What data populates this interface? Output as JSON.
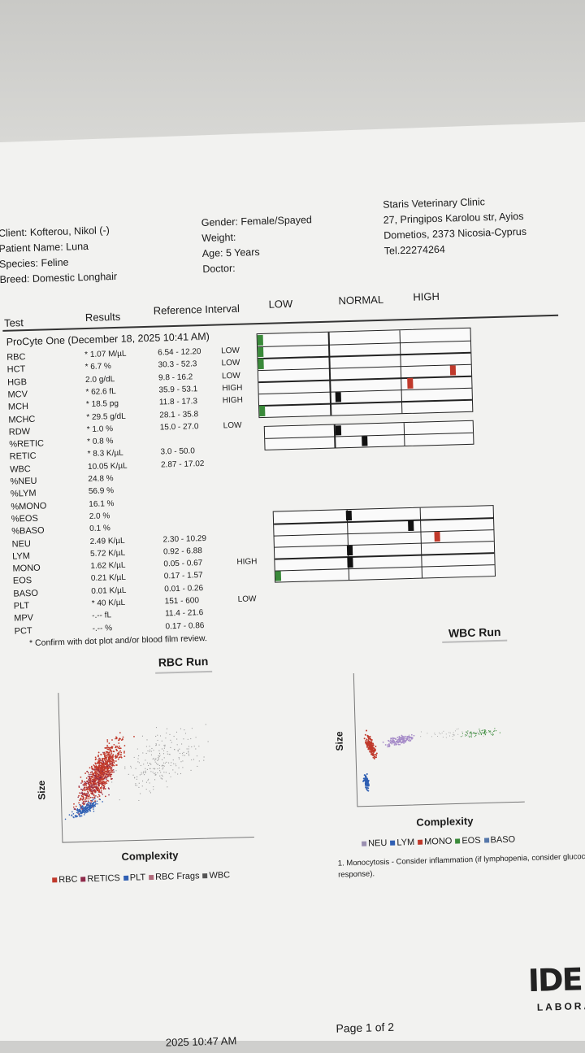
{
  "header": {
    "client": "Client: Kofterou, Nikol (-)",
    "patient": "Patient Name: Luna",
    "species": "Species: Feline",
    "breed": "Breed: Domestic Longhair",
    "gender": "Gender: Female/Spayed",
    "weight": "Weight:",
    "age": "Age: 5 Years",
    "doctor": "Doctor:",
    "clinic_name": "Staris Veterinary Clinic",
    "clinic_addr1": "27, Pringipos Karolou str, Ayios",
    "clinic_addr2": "Dometios, 2373 Nicosia-Cyprus",
    "clinic_tel": "Tel.22274264"
  },
  "table": {
    "col_test": "Test",
    "col_results": "Results",
    "col_ref": "Reference Interval",
    "col_low": "LOW",
    "col_normal": "NORMAL",
    "col_high": "HIGH",
    "run_title": "ProCyte One (December 18, 2025 10:41 AM)",
    "rows": [
      {
        "test": "RBC",
        "result": "* 1.07 M/µL",
        "ref": "6.54 - 12.20",
        "flag": "LOW"
      },
      {
        "test": "HCT",
        "result": "* 6.7 %",
        "ref": "30.3 - 52.3",
        "flag": "LOW"
      },
      {
        "test": "HGB",
        "result": "2.0 g/dL",
        "ref": "9.8 - 16.2",
        "flag": "LOW"
      },
      {
        "test": "MCV",
        "result": "* 62.6 fL",
        "ref": "35.9 - 53.1",
        "flag": "HIGH"
      },
      {
        "test": "MCH",
        "result": "* 18.5 pg",
        "ref": "11.8 - 17.3",
        "flag": "HIGH"
      },
      {
        "test": "MCHC",
        "result": "* 29.5 g/dL",
        "ref": "28.1 - 35.8",
        "flag": ""
      },
      {
        "test": "RDW",
        "result": "* 1.0 %",
        "ref": "15.0 - 27.0",
        "flag": "LOW"
      },
      {
        "test": "%RETIC",
        "result": "* 0.8 %",
        "ref": "",
        "flag": ""
      },
      {
        "test": "RETIC",
        "result": "* 8.3 K/µL",
        "ref": "3.0 - 50.0",
        "flag": ""
      },
      {
        "test": "WBC",
        "result": "10.05 K/µL",
        "ref": "2.87 - 17.02",
        "flag": ""
      },
      {
        "test": "%NEU",
        "result": "24.8 %",
        "ref": "",
        "flag": ""
      },
      {
        "test": "%LYM",
        "result": "56.9 %",
        "ref": "",
        "flag": ""
      },
      {
        "test": "%MONO",
        "result": "16.1 %",
        "ref": "",
        "flag": ""
      },
      {
        "test": "%EOS",
        "result": "2.0 %",
        "ref": "",
        "flag": ""
      },
      {
        "test": "%BASO",
        "result": "0.1 %",
        "ref": "",
        "flag": ""
      },
      {
        "test": "NEU",
        "result": "2.49 K/µL",
        "ref": "2.30 - 10.29",
        "flag": ""
      },
      {
        "test": "LYM",
        "result": "5.72 K/µL",
        "ref": "0.92 - 6.88",
        "flag": ""
      },
      {
        "test": "MONO",
        "result": "1.62 K/µL",
        "ref": "0.05 - 0.67",
        "flag": "HIGH"
      },
      {
        "test": "EOS",
        "result": "0.21 K/µL",
        "ref": "0.17 - 1.57",
        "flag": ""
      },
      {
        "test": "BASO",
        "result": "0.01 K/µL",
        "ref": "0.01 - 0.26",
        "flag": ""
      },
      {
        "test": "PLT",
        "result": "* 40 K/µL",
        "ref": "151 - 600",
        "flag": "LOW"
      },
      {
        "test": "MPV",
        "result": "-.-- fL",
        "ref": "11.4 - 21.6",
        "flag": ""
      },
      {
        "test": "PCT",
        "result": "-.-- %",
        "ref": "0.17 - 0.86",
        "flag": ""
      }
    ]
  },
  "gauges": {
    "rbc_group": [
      {
        "test": "RBC",
        "level": 0.0,
        "color": "#3a8a3a"
      },
      {
        "test": "HCT",
        "level": 0.0,
        "color": "#3a8a3a"
      },
      {
        "test": "HGB",
        "level": 0.0,
        "color": "#3a8a3a"
      },
      {
        "test": "MCV",
        "level": 0.93,
        "color": "#c0392b"
      },
      {
        "test": "MCH",
        "level": 0.72,
        "color": "#c0392b"
      },
      {
        "test": "MCHC",
        "level": 0.37,
        "color": "#111111"
      },
      {
        "test": "RDW",
        "level": 0.0,
        "color": "#3a8a3a"
      }
    ],
    "retic_group": [
      {
        "test": "RETIC",
        "level": 0.35,
        "color": "#111111"
      },
      {
        "test": "WBC",
        "level": 0.48,
        "color": "#111111"
      }
    ],
    "wbc_group": [
      {
        "test": "NEU",
        "level": 0.34,
        "color": "#111111"
      },
      {
        "test": "LYM",
        "level": 0.63,
        "color": "#111111"
      },
      {
        "test": "MONO",
        "level": 0.75,
        "color": "#c0392b"
      },
      {
        "test": "EOS",
        "level": 0.34,
        "color": "#111111"
      },
      {
        "test": "BASO",
        "level": 0.34,
        "color": "#111111"
      },
      {
        "test": "PLT",
        "level": 0.0,
        "color": "#3a8a3a"
      }
    ]
  },
  "footnote": "* Confirm with dot plot and/or blood film review.",
  "rbc_run": {
    "title": "RBC Run",
    "ylabel": "Size",
    "xlabel": "Complexity",
    "legend": [
      {
        "label": "RBC",
        "color": "#c0392b"
      },
      {
        "label": "RETICS",
        "color": "#8e2a4a"
      },
      {
        "label": "PLT",
        "color": "#2f5fb3"
      },
      {
        "label": "RBC Frags",
        "color": "#b06a7a"
      },
      {
        "label": "WBC",
        "color": "#555555"
      }
    ]
  },
  "wbc_run": {
    "title": "WBC Run",
    "ylabel": "Size",
    "xlabel": "Complexity",
    "legend": [
      {
        "label": "NEU",
        "color": "#9a8fb0"
      },
      {
        "label": "LYM",
        "color": "#2f5fb3"
      },
      {
        "label": "MONO",
        "color": "#c0392b"
      },
      {
        "label": "EOS",
        "color": "#3a8a3a"
      },
      {
        "label": "BASO",
        "color": "#5577aa"
      }
    ],
    "note": "1. Monocytosis - Consider inflammation (if lymphopenia, consider glucoco",
    "note2": "response)."
  },
  "footer": {
    "page": "Page 1 of 2",
    "printed": "2025 10:47 AM",
    "logo": "IDE",
    "logo_sub": "LABORA"
  }
}
